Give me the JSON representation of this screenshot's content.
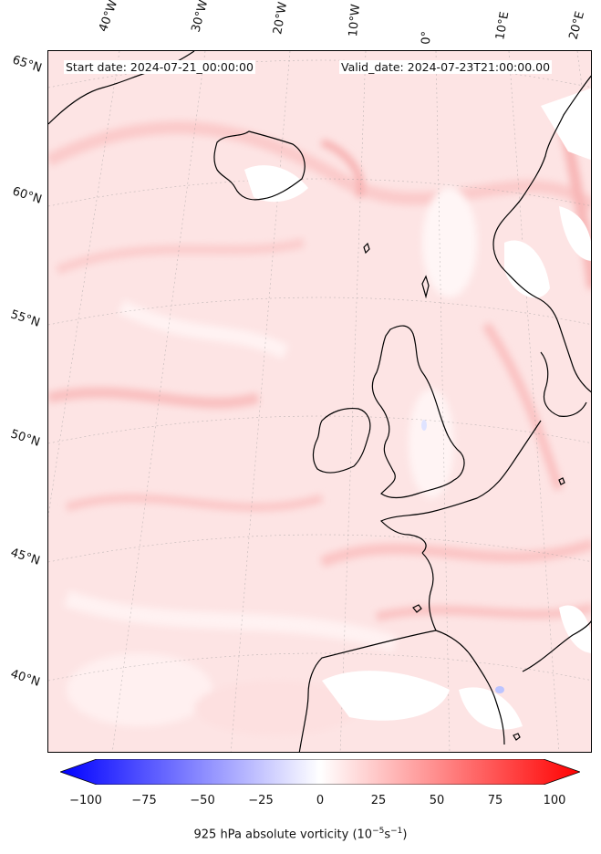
{
  "header": {
    "start_date": "Start date: 2024-07-21_00:00:00",
    "valid_date": "Valid_date: 2024-07-23T21:00:00.00"
  },
  "longitude_labels": [
    "40°W",
    "30°W",
    "20°W",
    "10°W",
    "0°",
    "10°E",
    "20°E"
  ],
  "latitude_labels": [
    "65°N",
    "60°N",
    "55°N",
    "50°N",
    "45°N",
    "40°N"
  ],
  "colorbar": {
    "ticks": [
      "−100",
      "−75",
      "−50",
      "−25",
      "0",
      "25",
      "50",
      "75",
      "100"
    ],
    "label": "925 hPa absolute vorticity (10",
    "label_exp1": "−5",
    "label_mid": "s",
    "label_exp2": "−1",
    "label_end": ")",
    "range": [
      -100,
      100
    ],
    "colors": {
      "negative": "#0000ff",
      "zero": "#ffffff",
      "positive": "#ff0000"
    }
  }
}
